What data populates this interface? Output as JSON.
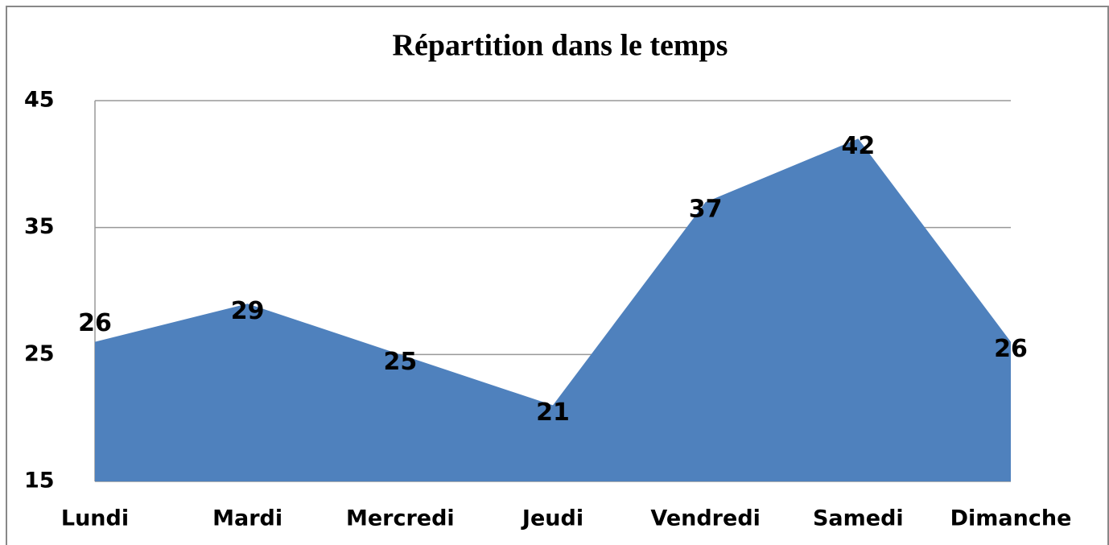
{
  "chart_data": {
    "type": "area",
    "title": "Répartition dans le temps",
    "categories": [
      "Lundi",
      "Mardi",
      "Mercredi",
      "Jeudi",
      "Vendredi",
      "Samedi",
      "Dimanche"
    ],
    "values": [
      26,
      29,
      25,
      21,
      37,
      42,
      26
    ],
    "color": "#4f81bd",
    "ylim": [
      15,
      45
    ],
    "yticks": [
      15,
      25,
      35,
      45
    ],
    "grid": true
  }
}
